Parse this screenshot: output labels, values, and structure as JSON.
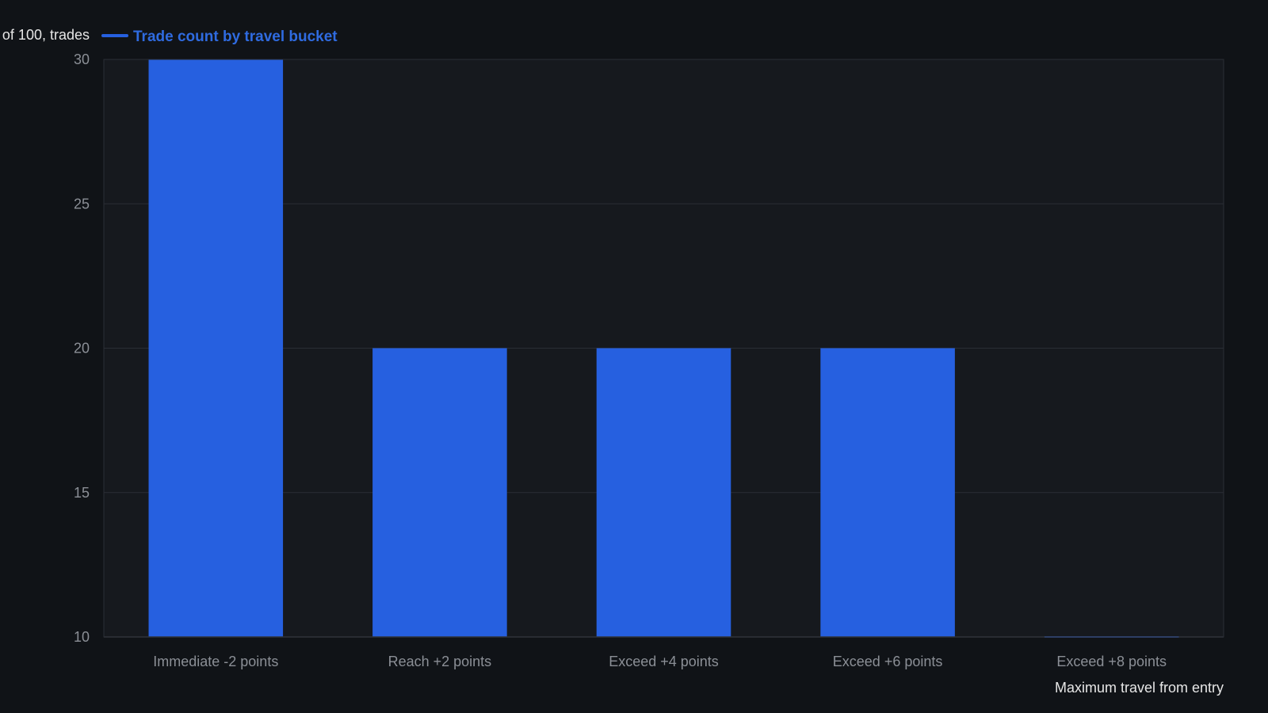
{
  "chart_data": {
    "type": "bar",
    "ylabel": "of 100, trades",
    "xlabel": "Maximum travel from entry",
    "categories": [
      "Immediate -2 points",
      "Reach +2 points",
      "Exceed +4 points",
      "Exceed +6 points",
      "Exceed +8 points"
    ],
    "series": [
      {
        "name": "Trade count by travel bucket",
        "values": [
          30,
          20,
          20,
          20,
          10
        ],
        "color": "#2660e0"
      }
    ],
    "ylim": [
      10,
      30
    ],
    "yticks": [
      "10",
      "15",
      "20",
      "25",
      "30"
    ],
    "grid": true,
    "legend_position": "top-left"
  },
  "colors": {
    "page_background": "#101317",
    "plot_background": "#16191e",
    "bar": "#2660e0",
    "legend_text": "#2f6be0"
  }
}
